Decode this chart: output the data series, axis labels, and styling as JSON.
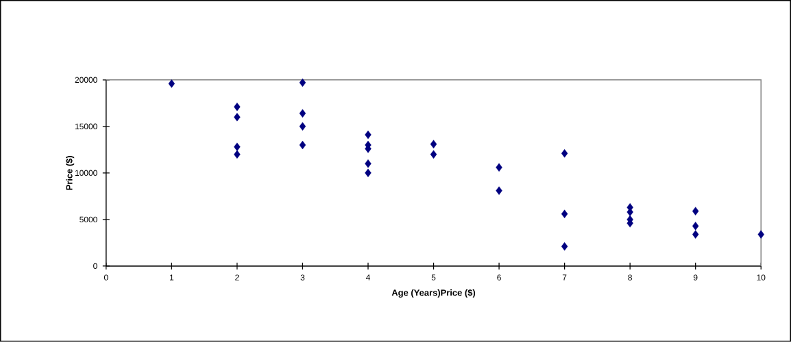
{
  "chart_data": {
    "type": "scatter",
    "xlabel": "Age (Years)Price ($)",
    "ylabel": "Price ($)",
    "x": [
      1,
      2,
      2,
      2,
      2,
      3,
      3,
      3,
      3,
      4,
      4,
      4,
      4,
      4,
      5,
      5,
      6,
      6,
      7,
      7,
      7,
      8,
      8,
      8,
      8,
      9,
      9,
      9,
      10
    ],
    "values": [
      19600,
      17100,
      16000,
      12800,
      12000,
      19700,
      16400,
      15000,
      13000,
      14100,
      13000,
      12600,
      11000,
      10000,
      13100,
      12000,
      10600,
      8100,
      12100,
      5600,
      2100,
      6300,
      5800,
      5000,
      4600,
      5900,
      4300,
      3400,
      3400
    ],
    "color": "#000080",
    "marker": "diamond",
    "grid": false,
    "xlim": [
      0,
      10
    ],
    "ylim": [
      0,
      20000
    ],
    "xticks": [
      0,
      1,
      2,
      3,
      4,
      5,
      6,
      7,
      8,
      9,
      10
    ],
    "yticks": [
      0,
      5000,
      10000,
      15000,
      20000
    ]
  }
}
